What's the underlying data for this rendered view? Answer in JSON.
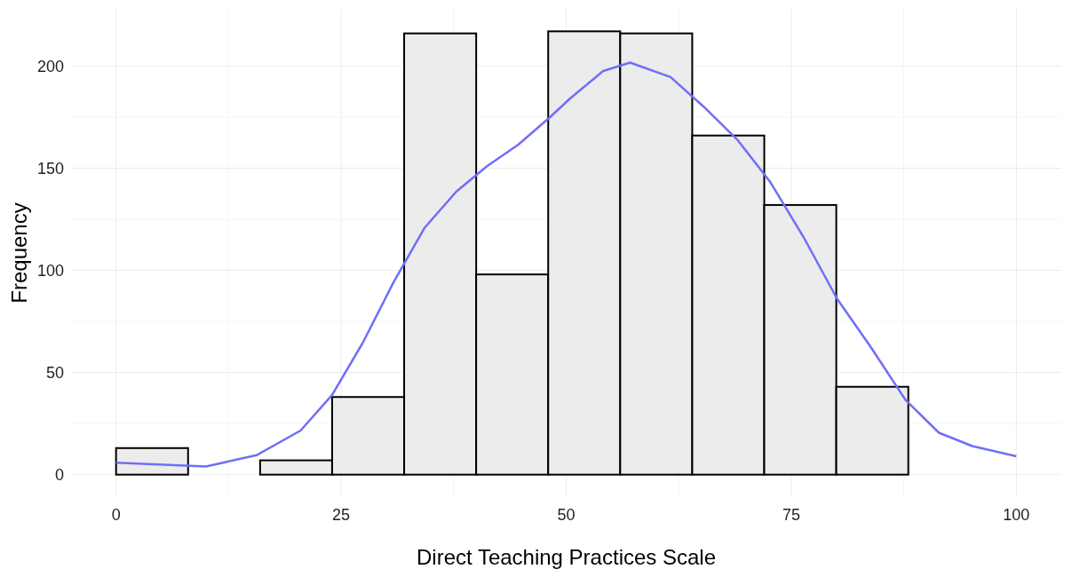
{
  "chart_data": {
    "type": "histogram",
    "xlabel": "Direct Teaching Practices Scale",
    "ylabel": "Frequency",
    "bins": [
      0,
      8,
      16,
      24,
      32,
      40,
      48,
      56,
      64,
      72,
      80,
      88,
      96
    ],
    "values": [
      13,
      0,
      7,
      38,
      216,
      98,
      217,
      216,
      166,
      132,
      43,
      0
    ],
    "color": "#ececec",
    "series": [
      {
        "type": "line",
        "color": "#6f6ff8",
        "x": [
          0,
          10,
          15.6,
          20.5,
          24,
          27.4,
          30.8,
          34.3,
          37.8,
          41.2,
          44.7,
          48.2,
          50.4,
          54.1,
          57.1,
          61.6,
          65.3,
          69,
          72.7,
          76.4,
          80.1,
          83.9,
          87.7,
          91.4,
          95.1,
          100
        ],
        "values": [
          5.8,
          4,
          9.5,
          21.6,
          39,
          64.5,
          94,
          121,
          138.6,
          151,
          161.6,
          175,
          184,
          197.6,
          201.7,
          194.6,
          180,
          164,
          143,
          116,
          86,
          62,
          36.5,
          20.5,
          14,
          9
        ]
      }
    ],
    "xlim": [
      -5,
      105
    ],
    "ylim": [
      -11,
      228
    ],
    "xticks": [
      0,
      25,
      50,
      75,
      100
    ],
    "yticks": [
      0,
      50,
      100,
      150,
      200
    ],
    "grid": true
  }
}
